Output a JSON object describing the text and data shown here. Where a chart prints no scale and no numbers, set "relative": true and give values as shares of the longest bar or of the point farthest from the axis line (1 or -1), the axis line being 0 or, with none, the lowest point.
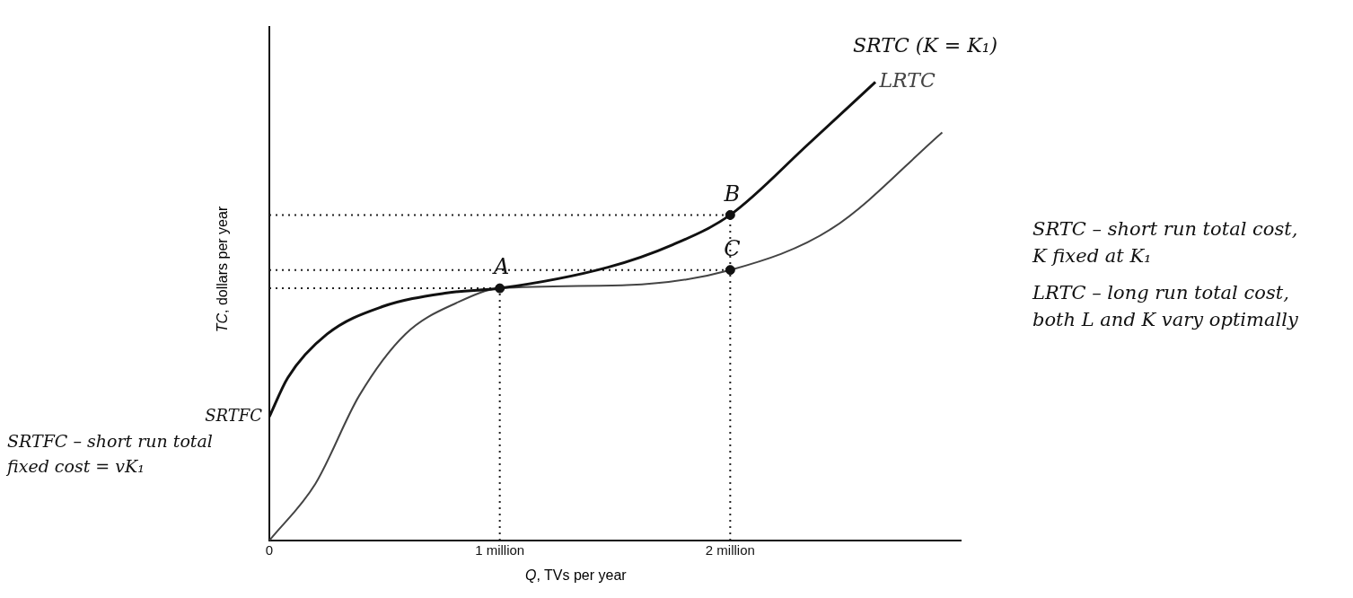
{
  "chart_data": {
    "type": "line",
    "relative": true,
    "xlabel": "Q, TVs per year",
    "ylabel": "TC, dollars per year",
    "xlim": [
      0,
      3
    ],
    "xticks": [
      0,
      {
        "value": 1,
        "label": "1 million"
      },
      {
        "value": 2,
        "label": "2 million"
      }
    ],
    "legend": false,
    "grid": false,
    "series": [
      {
        "name": "SRTC (K = K₁)",
        "color": "#111111",
        "x": [
          0,
          0.08,
          0.25,
          0.49,
          0.77,
          1,
          1.47,
          1.75,
          2,
          2.34,
          2.63
        ],
        "values": [
          0.27,
          0.355,
          0.45,
          0.51,
          0.54,
          0.55,
          0.596,
          0.645,
          0.71,
          0.865,
          1
        ]
      },
      {
        "name": "LRTC",
        "color": "#444444",
        "x": [
          0,
          0.2,
          0.39,
          0.59,
          0.82,
          1,
          1.55,
          2,
          2.44,
          2.92
        ],
        "values": [
          0,
          0.124,
          0.316,
          0.45,
          0.52,
          0.55,
          0.557,
          0.59,
          0.68,
          0.89
        ]
      },
      {
        "type": "scatter",
        "marker": "circle",
        "color": "#111111",
        "x": [
          1,
          2,
          2
        ],
        "values": [
          0.55,
          0.71,
          0.59
        ]
      }
    ],
    "ref_lines": [
      {
        "axis": "x",
        "value": 1,
        "color": "#222222",
        "line_style": "dotted"
      },
      {
        "axis": "x",
        "value": 2,
        "color": "#222222",
        "line_style": "dotted"
      },
      {
        "axis": "y",
        "value": 0.71,
        "color": "#222222",
        "line_style": "dotted"
      },
      {
        "axis": "y",
        "value": 0.59,
        "color": "#222222",
        "line_style": "dotted"
      },
      {
        "axis": "y",
        "value": 0.55,
        "color": "#222222",
        "line_style": "dotted"
      }
    ],
    "annotations": [
      {
        "text": "A",
        "x": 1,
        "y": 0.55
      },
      {
        "text": "B",
        "x": 2,
        "y": 0.71
      },
      {
        "text": "C",
        "x": 2,
        "y": 0.59
      },
      {
        "text": "SRTFC",
        "x": 0,
        "y": 0.27
      },
      "SRTC – short run total cost, K fixed at K₁",
      "LRTC – long run total cost, both L and K vary optimally",
      "SRTFC – short run total fixed cost = vK₁"
    ]
  }
}
